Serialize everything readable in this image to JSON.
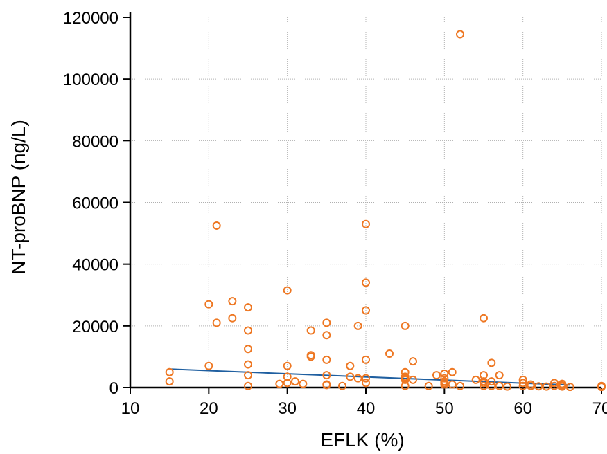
{
  "chart_data": {
    "type": "scatter",
    "xlabel": "EFLK (%)",
    "ylabel": "NT-proBNP (ng/L)",
    "xlim": [
      10,
      70
    ],
    "ylim": [
      0,
      120000
    ],
    "x_ticks": [
      10,
      20,
      30,
      40,
      50,
      60,
      70
    ],
    "y_ticks": [
      0,
      20000,
      40000,
      60000,
      80000,
      100000,
      120000
    ],
    "x_tick_labels": [
      "10",
      "20",
      "30",
      "40",
      "50",
      "60",
      "70"
    ],
    "y_tick_labels": [
      "0",
      "20000",
      "40000",
      "60000",
      "80000",
      "100000",
      "120000"
    ],
    "grid": true,
    "colors": {
      "points": "#ee7722",
      "regression": "#1f5fa0",
      "grid": "#b0b0b0"
    },
    "points": [
      [
        15,
        5000
      ],
      [
        15,
        2000
      ],
      [
        20,
        27000
      ],
      [
        20,
        7000
      ],
      [
        21,
        52500
      ],
      [
        21,
        21000
      ],
      [
        23,
        28000
      ],
      [
        23,
        22500
      ],
      [
        25,
        26000
      ],
      [
        25,
        18500
      ],
      [
        25,
        12500
      ],
      [
        25,
        7500
      ],
      [
        25,
        4000
      ],
      [
        25,
        500
      ],
      [
        29,
        1200
      ],
      [
        30,
        31500
      ],
      [
        30,
        7000
      ],
      [
        30,
        3500
      ],
      [
        30,
        1500
      ],
      [
        31,
        2000
      ],
      [
        32,
        1200
      ],
      [
        33,
        18500
      ],
      [
        33,
        10500
      ],
      [
        33,
        10000
      ],
      [
        35,
        21000
      ],
      [
        35,
        17000
      ],
      [
        35,
        9000
      ],
      [
        35,
        4000
      ],
      [
        35,
        1000
      ],
      [
        35,
        800
      ],
      [
        37,
        500
      ],
      [
        38,
        7000
      ],
      [
        38,
        3500
      ],
      [
        39,
        20000
      ],
      [
        39,
        3000
      ],
      [
        40,
        53000
      ],
      [
        40,
        34000
      ],
      [
        40,
        25000
      ],
      [
        40,
        9000
      ],
      [
        40,
        3000
      ],
      [
        40,
        1500
      ],
      [
        43,
        11000
      ],
      [
        45,
        20000
      ],
      [
        45,
        5000
      ],
      [
        45,
        3500
      ],
      [
        45,
        3000
      ],
      [
        45,
        2500
      ],
      [
        45,
        500
      ],
      [
        46,
        8500
      ],
      [
        46,
        2500
      ],
      [
        48,
        500
      ],
      [
        49,
        4000
      ],
      [
        50,
        4500
      ],
      [
        50,
        3000
      ],
      [
        50,
        2000
      ],
      [
        50,
        1500
      ],
      [
        50,
        1000
      ],
      [
        51,
        5000
      ],
      [
        51,
        1000
      ],
      [
        52,
        114500
      ],
      [
        52,
        500
      ],
      [
        54,
        2500
      ],
      [
        55,
        22500
      ],
      [
        55,
        4000
      ],
      [
        55,
        2000
      ],
      [
        55,
        1500
      ],
      [
        55,
        500
      ],
      [
        56,
        8000
      ],
      [
        56,
        2000
      ],
      [
        56,
        500
      ],
      [
        57,
        4000
      ],
      [
        57,
        500
      ],
      [
        58,
        300
      ],
      [
        60,
        2500
      ],
      [
        60,
        1500
      ],
      [
        60,
        500
      ],
      [
        61,
        1000
      ],
      [
        61,
        500
      ],
      [
        62,
        400
      ],
      [
        63,
        300
      ],
      [
        64,
        1500
      ],
      [
        64,
        500
      ],
      [
        65,
        1200
      ],
      [
        65,
        700
      ],
      [
        65,
        300
      ],
      [
        66,
        200
      ],
      [
        70,
        500
      ],
      [
        70,
        200
      ]
    ],
    "regression": {
      "x": [
        15,
        66
      ],
      "y": [
        6000,
        800
      ]
    }
  }
}
